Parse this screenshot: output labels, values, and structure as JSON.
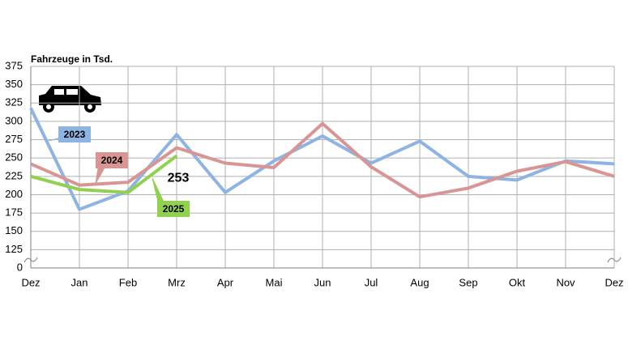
{
  "chart_data": {
    "type": "line",
    "y_label": "Fahrzeuge in Tsd.",
    "categories": [
      "Dez",
      "Jan",
      "Feb",
      "Mrz",
      "Apr",
      "Mai",
      "Jun",
      "Jul",
      "Aug",
      "Sep",
      "Okt",
      "Nov",
      "Dez"
    ],
    "series": [
      {
        "name": "2023",
        "color": "#8eb4e3",
        "values": [
          318,
          180,
          205,
          282,
          203,
          246,
          280,
          243,
          273,
          225,
          220,
          246,
          242
        ]
      },
      {
        "name": "2024",
        "color": "#d99594",
        "values": [
          242,
          213,
          217,
          264,
          243,
          237,
          297,
          238,
          197,
          209,
          232,
          245,
          225
        ]
      },
      {
        "name": "2025",
        "color": "#92d050",
        "values": [
          225,
          207,
          203,
          253,
          null,
          null,
          null,
          null,
          null,
          null,
          null,
          null,
          null
        ]
      }
    ],
    "ylim": [
      100,
      375
    ],
    "yticks": [
      {
        "value": 100,
        "label": "0"
      },
      125,
      150,
      175,
      200,
      225,
      250,
      275,
      300,
      325,
      350,
      375
    ],
    "grid": true
  }
}
